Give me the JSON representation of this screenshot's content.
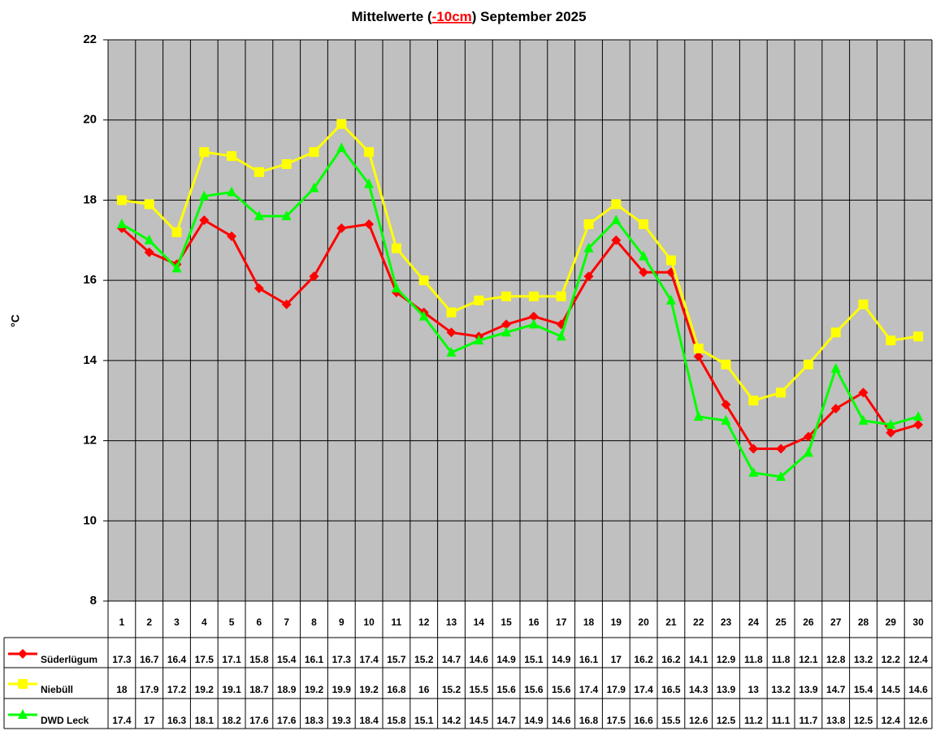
{
  "chart_data": {
    "type": "line",
    "title_parts": [
      "Mittelwerte (",
      "-10cm",
      ") September 2025"
    ],
    "ylabel": "°C",
    "categories": [
      "1",
      "2",
      "3",
      "4",
      "5",
      "6",
      "7",
      "8",
      "9",
      "10",
      "11",
      "12",
      "13",
      "14",
      "15",
      "16",
      "17",
      "18",
      "19",
      "20",
      "21",
      "22",
      "23",
      "24",
      "25",
      "26",
      "27",
      "28",
      "29",
      "30"
    ],
    "ylim": [
      8,
      22
    ],
    "yticks": [
      8,
      10,
      12,
      14,
      16,
      18,
      20,
      22
    ],
    "grid": true,
    "series": [
      {
        "name": "Süderlügum",
        "color": "#ff0000",
        "marker": "diamond",
        "values": [
          17.3,
          16.7,
          16.4,
          17.5,
          17.1,
          15.8,
          15.4,
          16.1,
          17.3,
          17.4,
          15.7,
          15.2,
          14.7,
          14.6,
          14.9,
          15.1,
          14.9,
          16.1,
          17,
          16.2,
          16.2,
          14.1,
          12.9,
          11.8,
          11.8,
          12.1,
          12.8,
          13.2,
          12.2,
          12.4
        ]
      },
      {
        "name": "Niebüll",
        "color": "#ffff00",
        "marker": "square",
        "values": [
          18,
          17.9,
          17.2,
          19.2,
          19.1,
          18.7,
          18.9,
          19.2,
          19.9,
          19.2,
          16.8,
          16,
          15.2,
          15.5,
          15.6,
          15.6,
          15.6,
          17.4,
          17.9,
          17.4,
          16.5,
          14.3,
          13.9,
          13,
          13.2,
          13.9,
          14.7,
          15.4,
          14.5,
          14.6
        ]
      },
      {
        "name": "DWD Leck",
        "color": "#00ff00",
        "marker": "triangle",
        "values": [
          17.4,
          17,
          16.3,
          18.1,
          18.2,
          17.6,
          17.6,
          18.3,
          19.3,
          18.4,
          15.8,
          15.1,
          14.2,
          14.5,
          14.7,
          14.9,
          14.6,
          16.8,
          17.5,
          16.6,
          15.5,
          12.6,
          12.5,
          11.2,
          11.1,
          11.7,
          13.8,
          12.5,
          12.4,
          12.6
        ]
      }
    ]
  }
}
